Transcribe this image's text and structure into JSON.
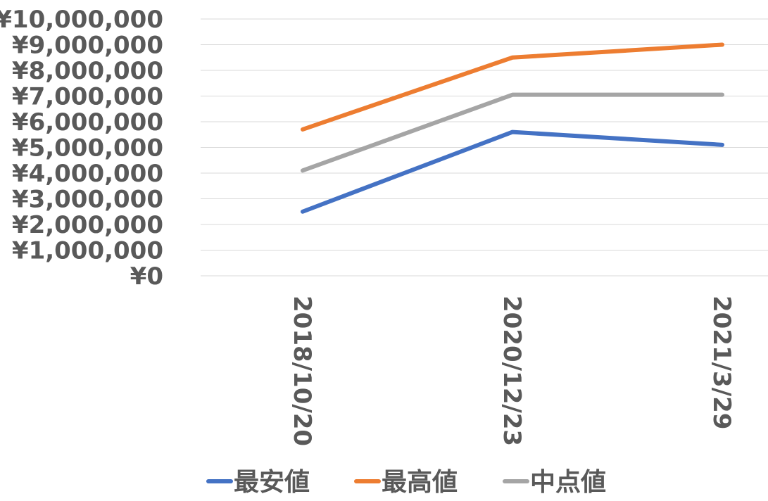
{
  "chart_data": {
    "type": "line",
    "categories": [
      "2018/10/20",
      "2020/12/23",
      "2021/3/29"
    ],
    "series": [
      {
        "name": "最安値",
        "color": "#4472c4",
        "values": [
          2500000,
          5600000,
          5100000
        ]
      },
      {
        "name": "最高値",
        "color": "#ed7d31",
        "values": [
          5700000,
          8500000,
          9000000
        ]
      },
      {
        "name": "中点値",
        "color": "#a5a5a5",
        "values": [
          4100000,
          7050000,
          7050000
        ]
      }
    ],
    "y_tick_labels": [
      "¥0",
      "¥1,000,000",
      "¥2,000,000",
      "¥3,000,000",
      "¥4,000,000",
      "¥5,000,000",
      "¥6,000,000",
      "¥7,000,000",
      "¥8,000,000",
      "¥9,000,000",
      "¥10,000,000"
    ],
    "y_ticks": [
      0,
      1000000,
      2000000,
      3000000,
      4000000,
      5000000,
      6000000,
      7000000,
      8000000,
      9000000,
      10000000
    ],
    "ylim": [
      0,
      10000000
    ],
    "grid": true,
    "legend_position": "bottom",
    "title": "",
    "xlabel": "",
    "ylabel": ""
  }
}
